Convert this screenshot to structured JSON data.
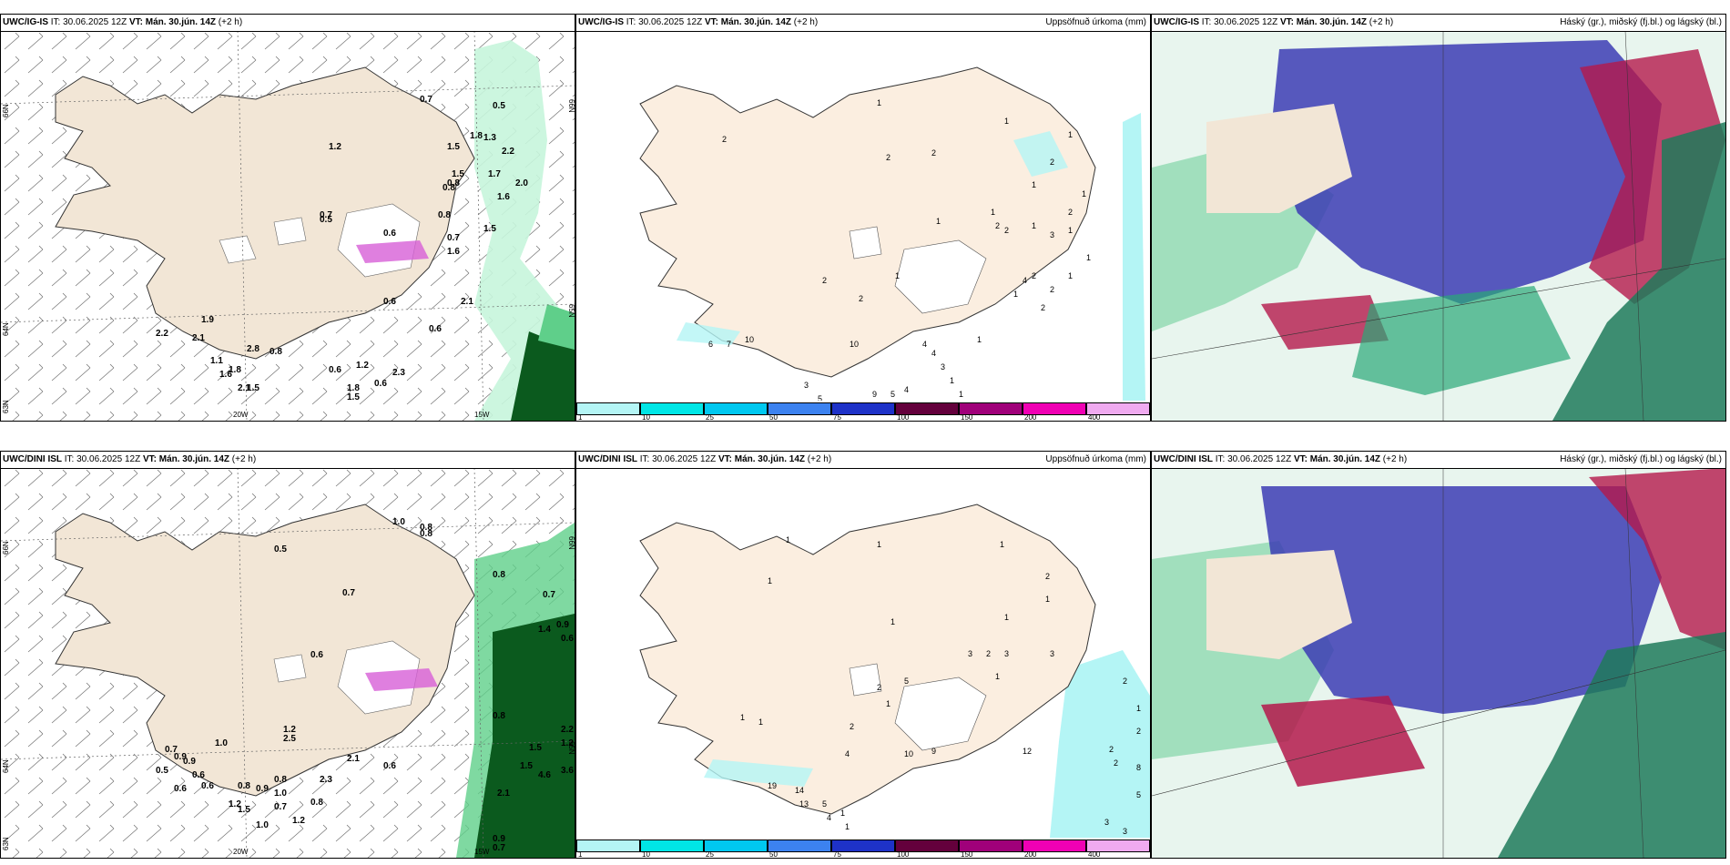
{
  "colors": {
    "land": "#f2e6d6",
    "land_light": "#fbeee0",
    "precip_light": "#c6f5dc",
    "precip_mid": "#5fcf8a",
    "precip_dark": "#0b5a1e",
    "magenta": "#d75fd7",
    "cloud_high": "#b4194b",
    "cloud_mid": "#3c3cb4",
    "cloud_low": "#1e7a5a",
    "acc_light": "#b4f5f5"
  },
  "panels": [
    {
      "id": "ig-wind",
      "model": "UWC/IG-IS",
      "it_label": "IT: 30.06.2025 12Z",
      "vt_label": "VT: Mán. 30.jún. 14Z",
      "offset": "(+2 h)",
      "right_title": "",
      "axis": {
        "lat66": "66N",
        "lat64": "64N",
        "lat65": "65N",
        "lat63": "63N",
        "lon20": "20W",
        "lon15": "15W"
      },
      "values": [
        "0.7",
        "0.5",
        "1.2",
        "1.5",
        "1.8",
        "1.3",
        "2.2",
        "0.8",
        "1.7",
        "2.0",
        "1.5",
        "0.8",
        "1.6",
        "0.8",
        "0.7",
        "0.5",
        "1.5",
        "0.6",
        "0.7",
        "1.6",
        "0.6",
        "2.1",
        "0.6",
        "1.9",
        "2.2",
        "2.1",
        "2.8",
        "0.8",
        "1.1",
        "1.8",
        "1.6",
        "1.5",
        "2.1",
        "1.2",
        "0.6",
        "2.3",
        "0.6",
        "1.8",
        "1.5"
      ]
    },
    {
      "id": "ig-acc",
      "model": "UWC/IG-IS",
      "it_label": "IT: 30.06.2025 12Z",
      "vt_label": "VT: Mán. 30.jún. 14Z",
      "offset": "(+2 h)",
      "right_title": "Uppsöfnuð úrkoma (mm)",
      "values": [
        "1",
        "2",
        "2",
        "1",
        "2",
        "1",
        "2",
        "1",
        "1",
        "2",
        "1",
        "2",
        "1",
        "3",
        "1",
        "1",
        "1",
        "2",
        "2",
        "1",
        "2",
        "2",
        "4",
        "1",
        "2",
        "1",
        "2",
        "1",
        "6",
        "7",
        "10",
        "10",
        "4",
        "4",
        "3",
        "1",
        "5",
        "4",
        "5",
        "9",
        "3",
        "1"
      ]
    },
    {
      "id": "ig-cloud",
      "model": "UWC/IG-IS",
      "it_label": "IT: 30.06.2025 12Z",
      "vt_label": "VT: Mán. 30.jún. 14Z",
      "offset": "(+2 h)",
      "right_title": "Háský (gr.), miðský (fj.bl.) og lágský (bl.)"
    },
    {
      "id": "dini-wind",
      "model": "UWC/DINI ISL",
      "it_label": "IT: 30.06.2025 12Z",
      "vt_label": "VT: Mán. 30.jún. 14Z",
      "offset": "(+2 h)",
      "right_title": "",
      "axis": {
        "lat66": "66N",
        "lat64": "64N",
        "lat65": "65N",
        "lat63": "63N",
        "lon20": "20W",
        "lon15": "15W"
      },
      "values": [
        "1.0",
        "0.8",
        "0.8",
        "0.5",
        "0.8",
        "0.7",
        "0.7",
        "1.4",
        "0.9",
        "0.6",
        "0.6",
        "0.8",
        "1.2",
        "2.2",
        "1.2",
        "2.5",
        "1.5",
        "3.6",
        "1.0",
        "1.5",
        "4.6",
        "2.1",
        "0.7",
        "0.9",
        "0.9",
        "2.1",
        "0.6",
        "0.5",
        "0.6",
        "0.6",
        "0.6",
        "0.8",
        "2.3",
        "0.8",
        "0.9",
        "1.0",
        "1.2",
        "0.8",
        "0.7",
        "1.5",
        "1.0",
        "1.2",
        "0.9",
        "0.7"
      ]
    },
    {
      "id": "dini-acc",
      "model": "UWC/DINI ISL",
      "it_label": "IT: 30.06.2025 12Z",
      "vt_label": "VT: Mán. 30.jún. 14Z",
      "offset": "(+2 h)",
      "right_title": "Uppsöfnuð úrkoma (mm)",
      "values": [
        "1",
        "1",
        "1",
        "1",
        "2",
        "1",
        "1",
        "1",
        "3",
        "2",
        "3",
        "3",
        "5",
        "2",
        "1",
        "1",
        "2",
        "2",
        "1",
        "2",
        "2",
        "2",
        "8",
        "5",
        "1",
        "1",
        "10",
        "4",
        "19",
        "14",
        "13",
        "5",
        "4",
        "1",
        "1",
        "9",
        "12",
        "3",
        "3",
        "3"
      ]
    },
    {
      "id": "dini-cloud",
      "model": "UWC/DINI ISL",
      "it_label": "IT: 30.06.2025 12Z",
      "vt_label": "VT: Mán. 30.jún. 14Z",
      "offset": "(+2 h)",
      "right_title": "Háský (gr.), miðský (fj.bl.) og lágský (bl.)"
    }
  ],
  "legend": {
    "ticks": [
      "1",
      "10",
      "25",
      "50",
      "75",
      "100",
      "150",
      "200",
      "400"
    ],
    "colors": [
      "#b4f5f5",
      "#00e6e6",
      "#00c8f0",
      "#3c82f0",
      "#1e32c8",
      "#64003c",
      "#a0007a",
      "#f000b4",
      "#f0aaf0"
    ]
  }
}
